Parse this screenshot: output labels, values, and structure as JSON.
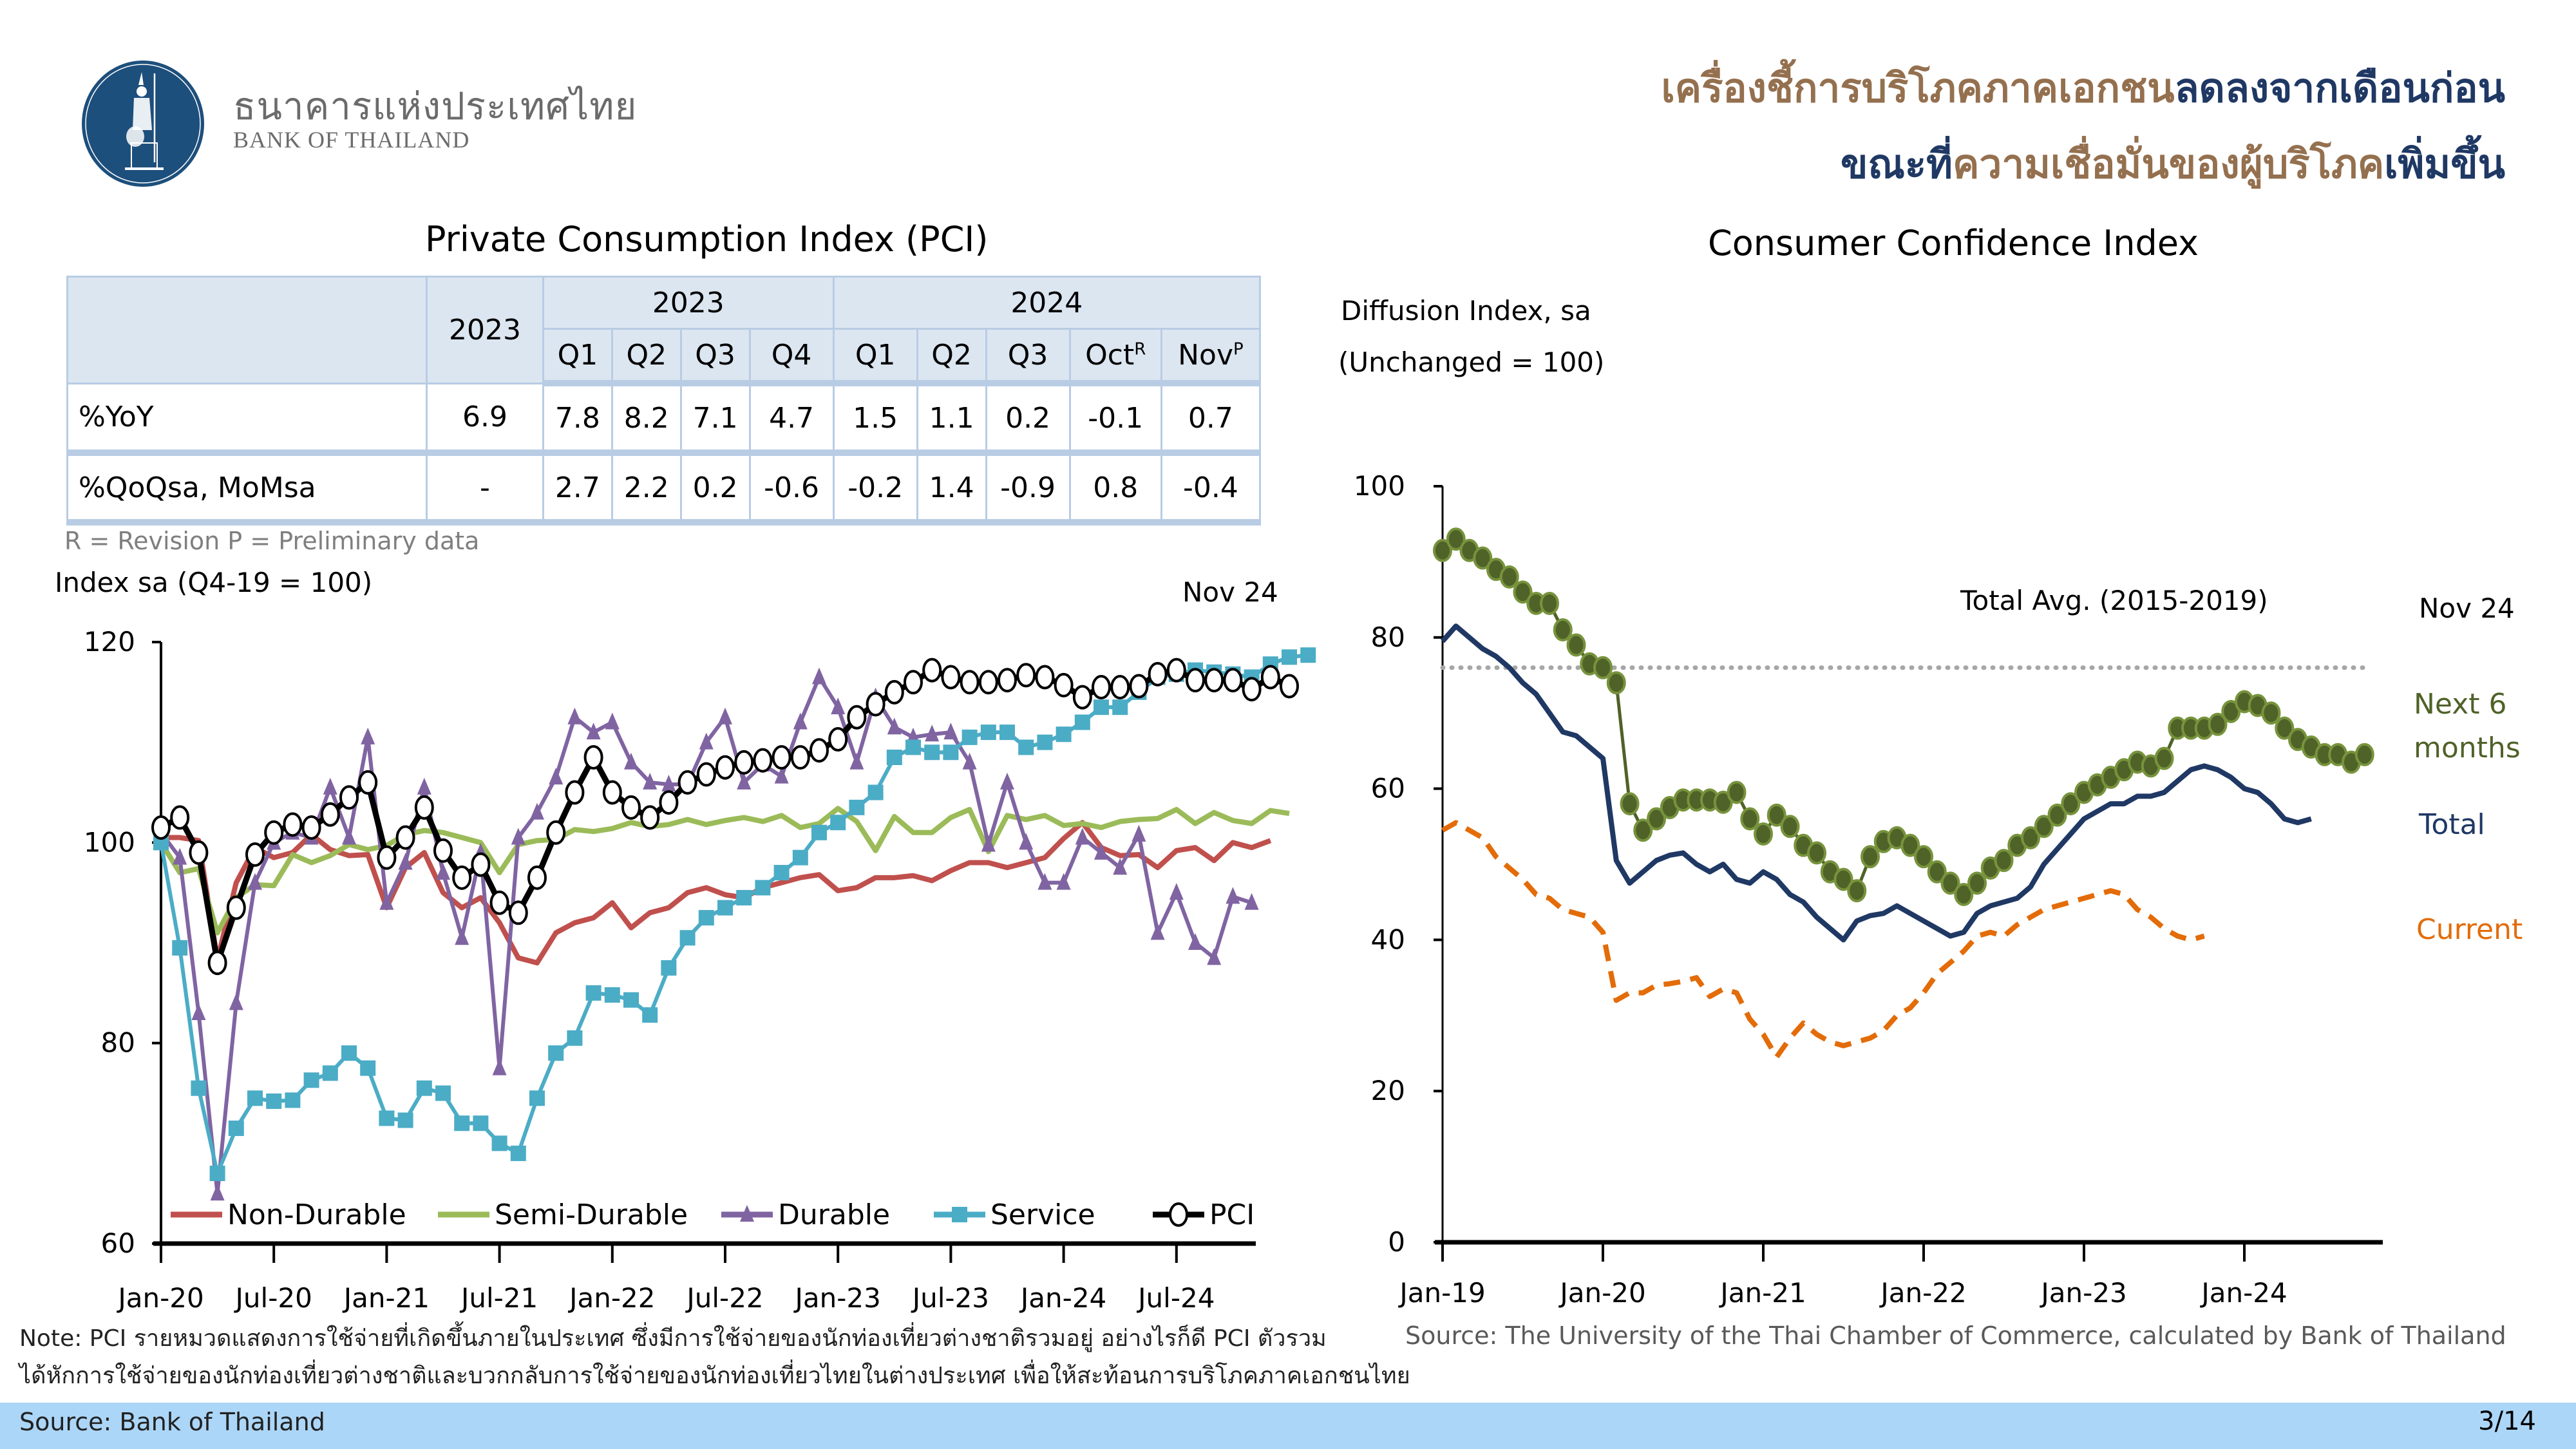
{
  "header": {
    "bank_name_th": "ธนาคารแห่งประเทศไทย",
    "bank_name_en": "BANK OF THAILAND",
    "headline_line1": [
      {
        "text": "เครื่องชี้การบริโภคภาคเอกชน",
        "color": "brown"
      },
      {
        "text": "ลดลงจากเดือนก่อน",
        "color": "navy"
      }
    ],
    "headline_line2": [
      {
        "text": "ขณะที่",
        "color": "navy"
      },
      {
        "text": "ความเชื่อมั่นของผู้บริโภค",
        "color": "brown"
      },
      {
        "text": "เพิ่มขึ้น",
        "color": "navy"
      }
    ]
  },
  "pci_table": {
    "title": "Private Consumption Index (PCI)",
    "annual_header": "2023",
    "year_groups": [
      {
        "label": "2023",
        "span": 4
      },
      {
        "label": "2024",
        "span": 5
      }
    ],
    "periods": [
      {
        "label": "Q1"
      },
      {
        "label": "Q2"
      },
      {
        "label": "Q3"
      },
      {
        "label": "Q4"
      },
      {
        "label": "Q1"
      },
      {
        "label": "Q2"
      },
      {
        "label": "Q3"
      },
      {
        "label": "Oct",
        "sup": "R"
      },
      {
        "label": "Nov",
        "sup": "P"
      }
    ],
    "rows": [
      {
        "label": "%YoY",
        "annual": "6.9",
        "values": [
          "7.8",
          "8.2",
          "7.1",
          "4.7",
          "1.5",
          "1.1",
          "0.2",
          "-0.1",
          "0.7"
        ]
      },
      {
        "label": "%QoQsa, MoMsa",
        "annual": "-",
        "values": [
          "2.7",
          "2.2",
          "0.2",
          "-0.6",
          "-0.2",
          "1.4",
          "-0.9",
          "0.8",
          "-0.4"
        ]
      }
    ],
    "footnote": "R = Revision P = Preliminary data"
  },
  "chart_data": [
    {
      "type": "line",
      "title": "Private Consumption Index (PCI)",
      "ylabel": "Index sa (Q4-19 = 100)",
      "latest_label": "Nov 24",
      "ylim": [
        60,
        120
      ],
      "yticks": [
        60,
        80,
        100,
        120
      ],
      "x_start": "Jan-20",
      "x_end": "Nov-24",
      "xtick_labels": [
        "Jan-20",
        "Jul-20",
        "Jan-21",
        "Jul-21",
        "Jan-22",
        "Jul-22",
        "Jan-23",
        "Jul-23",
        "Jan-24",
        "Jul-24"
      ],
      "legend_position": "bottom",
      "series": [
        {
          "name": "Non-Durable",
          "color": "#c0504d",
          "marker": "none",
          "values": [
            100.5,
            100.5,
            100.2,
            88.3,
            96,
            99.5,
            98.5,
            99,
            100.8,
            99.3,
            98.7,
            98.8,
            93.5,
            97.5,
            99,
            95,
            93.5,
            94.5,
            92,
            88.5,
            88,
            91,
            92,
            92.5,
            94,
            91.5,
            93,
            93.5,
            95,
            95.5,
            94.8,
            94.5,
            95.5,
            96,
            96.5,
            96.8,
            95.2,
            95.5,
            96.5,
            96.5,
            96.7,
            96.2,
            97.2,
            98,
            98,
            97.5,
            98,
            98.5,
            100.4,
            102,
            99.5,
            98.7,
            98.8,
            97.5,
            99.2,
            99.5,
            98.2,
            100,
            99.5,
            100.2
          ]
        },
        {
          "name": "Semi-Durable",
          "color": "#9bbb59",
          "marker": "none",
          "values": [
            100,
            97,
            97.4,
            91,
            94.5,
            95.8,
            95.7,
            98.8,
            98,
            98.7,
            99.8,
            99.3,
            99.7,
            100.8,
            101.2,
            101,
            100.5,
            100,
            97,
            99.8,
            100.2,
            100.3,
            101.3,
            101.1,
            101.4,
            102,
            101.6,
            101.8,
            102.3,
            101.8,
            102.2,
            102.5,
            102.1,
            102.7,
            101.5,
            101.9,
            103.4,
            102.1,
            99.2,
            102.6,
            101,
            101,
            102.5,
            103.3,
            99.1,
            102.7,
            102.3,
            102.7,
            101.7,
            101.9,
            101.5,
            102.1,
            102.3,
            102.4,
            103.3,
            101.9,
            103,
            102.2,
            101.9,
            103.2,
            102.9
          ]
        },
        {
          "name": "Durable",
          "color": "#8064a2",
          "marker": "triangle",
          "values": [
            101,
            98.5,
            83,
            65,
            84,
            96,
            100,
            101,
            100.5,
            105.5,
            100.5,
            110.5,
            94,
            98,
            105.5,
            97,
            90.5,
            99,
            77.5,
            100.5,
            103,
            106.5,
            112.5,
            111,
            112,
            108,
            106,
            105.8,
            105.8,
            110,
            112.5,
            106,
            107.8,
            106.6,
            112,
            116.5,
            113.5,
            108,
            114.5,
            111.5,
            110.5,
            110.8,
            111,
            108,
            99.8,
            106,
            100,
            96,
            96,
            100.5,
            99,
            97.5,
            100.8,
            91,
            95,
            90,
            88.5,
            94.6,
            94
          ]
        },
        {
          "name": "Service",
          "color": "#4bacc6",
          "marker": "square",
          "values": [
            100,
            89.5,
            75.5,
            67,
            71.5,
            74.5,
            74.2,
            74.3,
            76.3,
            77,
            79,
            77.5,
            72.5,
            72.3,
            75.5,
            75,
            72,
            72,
            70,
            69,
            74.5,
            79,
            80.5,
            85,
            84.8,
            84.3,
            82.8,
            87.5,
            90.5,
            92.5,
            93.5,
            94.5,
            95.5,
            97,
            98.5,
            101,
            102,
            103.5,
            105,
            108.5,
            109.5,
            109,
            109,
            110.5,
            111,
            111,
            109.5,
            110,
            110.8,
            112,
            113.5,
            113.5,
            115,
            116.5,
            116.8,
            117.2,
            117,
            116.8,
            116.5,
            117.8,
            118.5,
            118.7
          ]
        },
        {
          "name": "PCI",
          "color": "#000000",
          "marker": "circle",
          "values": [
            101.5,
            102.5,
            99,
            88,
            93.5,
            98.8,
            101,
            101.8,
            101.5,
            102.8,
            104.5,
            106,
            98.5,
            100.5,
            103.5,
            99.2,
            96.5,
            97.8,
            94,
            93,
            96.5,
            101,
            105,
            108.5,
            105,
            103.5,
            102.5,
            104,
            106,
            106.8,
            107.5,
            108,
            108.2,
            108.5,
            108.5,
            109.2,
            110.3,
            112.5,
            113.8,
            115,
            116,
            117.2,
            116.5,
            116,
            116,
            116.2,
            116.7,
            116.5,
            115.7,
            114.5,
            115.5,
            115.5,
            115.6,
            116.8,
            117.2,
            116.2,
            116.2,
            116.2,
            115.3,
            116.5,
            115.6
          ]
        }
      ]
    },
    {
      "type": "line",
      "title": "Consumer Confidence Index",
      "ylabel": "Diffusion Index, sa",
      "ylabel_sub": "(Unchanged = 100)",
      "latest_label": "Nov 24",
      "ylim": [
        0,
        100
      ],
      "yticks": [
        0,
        20,
        40,
        60,
        80,
        100
      ],
      "x_start": "Jan-19",
      "x_end": "Nov-24",
      "xtick_labels": [
        "Jan-19",
        "Jan-20",
        "Jan-21",
        "Jan-22",
        "Jan-23",
        "Jan-24"
      ],
      "reference_line": {
        "label": "Total Avg. (2015-2019)",
        "value": 76
      },
      "series": [
        {
          "name": "Next 6 months",
          "color": "#4f6228",
          "marker": "circle",
          "values": [
            91.5,
            93,
            91.5,
            90.5,
            89,
            88,
            86,
            84.5,
            84.5,
            81,
            79,
            76.5,
            76,
            74,
            58,
            54.5,
            56,
            57.5,
            58.5,
            58.5,
            58.5,
            58.2,
            59.5,
            56,
            54,
            56.5,
            55,
            52.5,
            51.5,
            49,
            48,
            46.5,
            51,
            53,
            53.5,
            52.5,
            51,
            49,
            47.5,
            46,
            47.5,
            49.5,
            50.5,
            52.5,
            53.5,
            55,
            56.5,
            58,
            59.5,
            60.5,
            61.5,
            62.5,
            63.5,
            63,
            64,
            68,
            68,
            68,
            68.5,
            70.2,
            71.5,
            71,
            70,
            68,
            66.5,
            65.5,
            64.5,
            64.5,
            63.5,
            64.5
          ]
        },
        {
          "name": "Total",
          "color": "#1f3864",
          "marker": "none",
          "values": [
            79.5,
            81.5,
            80,
            78.5,
            77.5,
            76,
            74,
            72.5,
            70,
            67.5,
            67,
            65.5,
            64,
            50.5,
            47.5,
            49,
            50.5,
            51.2,
            51.5,
            50,
            49,
            50,
            48,
            47.5,
            49,
            48,
            46,
            45,
            43,
            41.5,
            40,
            42.5,
            43.2,
            43.5,
            44.5,
            43.5,
            42.5,
            41.5,
            40.5,
            41,
            43.5,
            44.5,
            45,
            45.5,
            47,
            50,
            52,
            54,
            56,
            57,
            58,
            58,
            59,
            59,
            59.5,
            61,
            62.5,
            63,
            62.5,
            61.5,
            60,
            59.5,
            58,
            56,
            55.5,
            56
          ]
        },
        {
          "name": "Current",
          "color": "#e36c09",
          "marker": "none",
          "dash": true,
          "values": [
            54.5,
            55.5,
            54.5,
            53.5,
            51,
            49.5,
            48,
            46,
            45.5,
            44,
            43.5,
            43,
            41,
            32,
            33,
            33,
            34,
            34.2,
            34.5,
            35,
            32.5,
            33.5,
            33,
            29.5,
            27.5,
            24.5,
            27,
            29,
            27.5,
            26.5,
            26,
            26.5,
            27,
            28,
            30,
            31,
            33,
            35.5,
            37,
            38.5,
            40.5,
            41,
            40.5,
            42,
            43,
            44,
            44.5,
            45,
            45.5,
            46,
            46.5,
            46,
            44,
            43,
            41.5,
            40.5,
            40,
            40.5
          ]
        }
      ]
    }
  ],
  "notes": {
    "note_line1": "Note: PCI รายหมวดแสดงการใช้จ่ายที่เกิดขึ้นภายในประเทศ ซึ่งมีการใช้จ่ายของนักท่องเที่ยวต่างชาติรวมอยู่ อย่างไรก็ดี PCI ตัวรวม",
    "note_line2": "ได้หักการใช้จ่ายของนักท่องเที่ยวต่างชาติและบวกกลับการใช้จ่ายของนักท่องเที่ยวไทยในต่างประเทศ เพื่อให้สะท้อนการบริโภคภาคเอกชนไทย",
    "cci_source": "Source:  The University of the Thai Chamber of Commerce, calculated by Bank of Thailand"
  },
  "footer": {
    "source": "Source: Bank of Thailand",
    "page": "3/14"
  },
  "colors": {
    "brown": "#94704f",
    "navy": "#1f3864",
    "logo_blue": "#1d4f7c",
    "table_header_bg": "#dce6f1",
    "table_border": "#b8cce4",
    "footer_bg": "#acd6f8"
  }
}
